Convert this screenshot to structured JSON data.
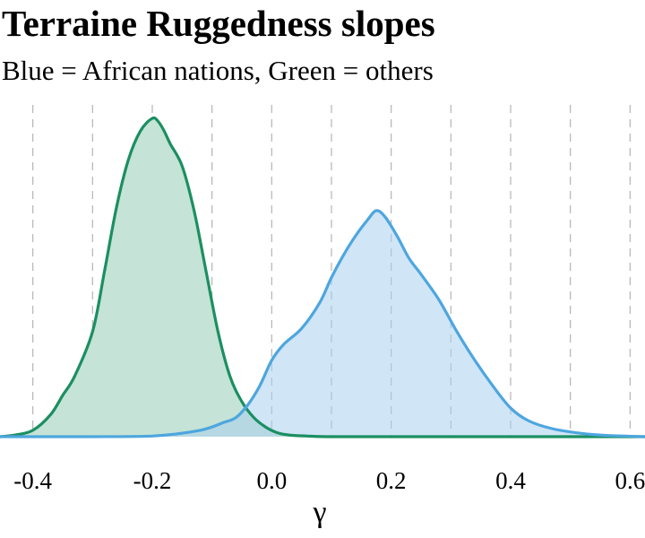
{
  "title": "Terraine Ruggedness slopes",
  "subtitle": "Blue = African nations, Green = others",
  "chart_data": {
    "type": "area",
    "title": "Terraine Ruggedness slopes",
    "subtitle": "Blue = African nations, Green = others",
    "xlabel": "γ",
    "ylabel": "",
    "xlim": [
      -0.455,
      0.625
    ],
    "ylim": [
      0,
      1.0
    ],
    "xticks": [
      -0.4,
      -0.2,
      0.0,
      0.2,
      0.4,
      0.6
    ],
    "xtick_labels": [
      "-0.4",
      "-0.2",
      "0.0",
      "0.2",
      "0.4",
      "0.6"
    ],
    "vertical_gridlines": [
      -0.4,
      -0.3,
      -0.2,
      -0.1,
      0.0,
      0.1,
      0.2,
      0.3,
      0.4,
      0.5,
      0.6
    ],
    "grid": "vertical dashed",
    "legend": "none",
    "series": [
      {
        "color": "#1b8f62",
        "fill": "#c5e3d6",
        "x": [
          -0.455,
          -0.43,
          -0.4,
          -0.37,
          -0.35,
          -0.33,
          -0.3,
          -0.28,
          -0.26,
          -0.24,
          -0.22,
          -0.2,
          -0.19,
          -0.18,
          -0.17,
          -0.15,
          -0.13,
          -0.11,
          -0.09,
          -0.07,
          -0.05,
          -0.03,
          -0.01,
          0.01,
          0.03,
          0.06,
          0.1,
          0.2,
          0.4,
          0.625
        ],
        "y": [
          0.0,
          0.005,
          0.02,
          0.07,
          0.13,
          0.19,
          0.33,
          0.52,
          0.72,
          0.87,
          0.96,
          1.0,
          0.99,
          0.96,
          0.92,
          0.85,
          0.71,
          0.52,
          0.33,
          0.19,
          0.11,
          0.06,
          0.03,
          0.012,
          0.005,
          0.002,
          0.0,
          0.0,
          0.0,
          0.0
        ]
      },
      {
        "color": "#4da6de",
        "fill": "#d1e6f7",
        "x": [
          -0.455,
          -0.3,
          -0.2,
          -0.12,
          -0.08,
          -0.06,
          -0.04,
          -0.02,
          0.0,
          0.02,
          0.05,
          0.08,
          0.1,
          0.12,
          0.14,
          0.16,
          0.175,
          0.19,
          0.21,
          0.23,
          0.25,
          0.28,
          0.31,
          0.34,
          0.37,
          0.4,
          0.43,
          0.47,
          0.52,
          0.56,
          0.625
        ],
        "y": [
          0.0,
          0.0,
          0.002,
          0.02,
          0.045,
          0.06,
          0.1,
          0.16,
          0.24,
          0.29,
          0.34,
          0.42,
          0.5,
          0.57,
          0.63,
          0.68,
          0.71,
          0.69,
          0.63,
          0.56,
          0.51,
          0.43,
          0.33,
          0.24,
          0.16,
          0.09,
          0.05,
          0.025,
          0.01,
          0.004,
          0.0
        ]
      }
    ]
  }
}
